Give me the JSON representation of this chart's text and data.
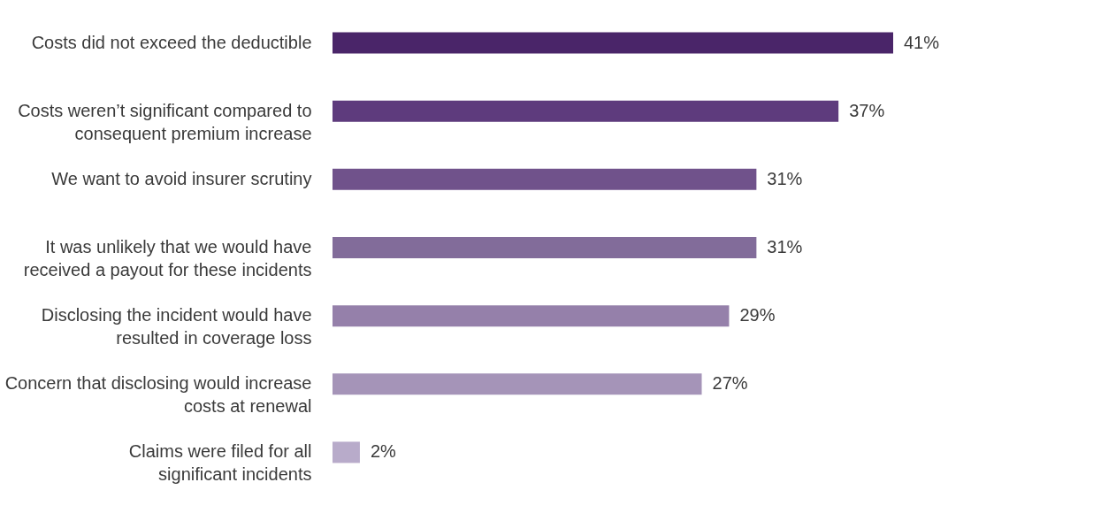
{
  "chart_data": {
    "type": "bar",
    "orientation": "horizontal",
    "categories": [
      "Costs did not exceed the deductible",
      "Costs weren’t significant compared to\nconsequent premium increase",
      "We want to avoid insurer scrutiny",
      "It was unlikely that we would have\nreceived a payout for these incidents",
      "Disclosing the incident would have\nresulted in coverage loss",
      "Concern that disclosing would increase\ncosts at renewal",
      "Claims were filed for all\nsignificant incidents"
    ],
    "values": [
      41,
      37,
      31,
      31,
      29,
      27,
      2
    ],
    "colors": [
      "#4a2569",
      "#5e3b7d",
      "#70528b",
      "#826c9a",
      "#9580aa",
      "#a594b8",
      "#b8abca"
    ],
    "value_labels": [
      "41%",
      "37%",
      "31%",
      "31%",
      "29%",
      "27%",
      "2%"
    ]
  }
}
